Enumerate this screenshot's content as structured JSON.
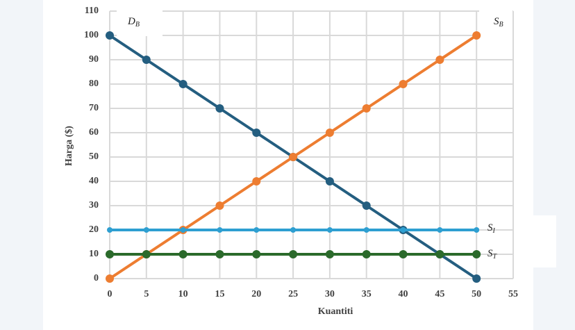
{
  "chart_data": {
    "type": "line",
    "x_label": "Kuantiti",
    "y_label": "Harga ($)",
    "x": [
      0,
      5,
      10,
      15,
      20,
      25,
      30,
      35,
      40,
      45,
      50
    ],
    "xlim": [
      0,
      55
    ],
    "xticks": [
      0,
      5,
      10,
      15,
      20,
      25,
      30,
      35,
      40,
      45,
      50,
      55
    ],
    "ylim": [
      0,
      110
    ],
    "yticks": [
      0,
      10,
      20,
      30,
      40,
      50,
      60,
      70,
      80,
      90,
      100,
      110
    ],
    "grid": true,
    "series": [
      {
        "name": "D",
        "subscript": "B",
        "color": "#245e80",
        "values": [
          100,
          90,
          80,
          70,
          60,
          50,
          40,
          30,
          20,
          10,
          0
        ]
      },
      {
        "name": "S",
        "subscript": "B",
        "color": "#ed7d31",
        "values": [
          0,
          10,
          20,
          30,
          40,
          50,
          60,
          70,
          80,
          90,
          100
        ]
      },
      {
        "name": "S",
        "subscript": "I",
        "color": "#2e9fd1",
        "values": [
          20,
          20,
          20,
          20,
          20,
          20,
          20,
          20,
          20,
          20,
          20
        ]
      },
      {
        "name": "S",
        "subscript": "T",
        "color": "#2b6a2b",
        "values": [
          10,
          10,
          10,
          10,
          10,
          10,
          10,
          10,
          10,
          10,
          10
        ]
      }
    ]
  }
}
